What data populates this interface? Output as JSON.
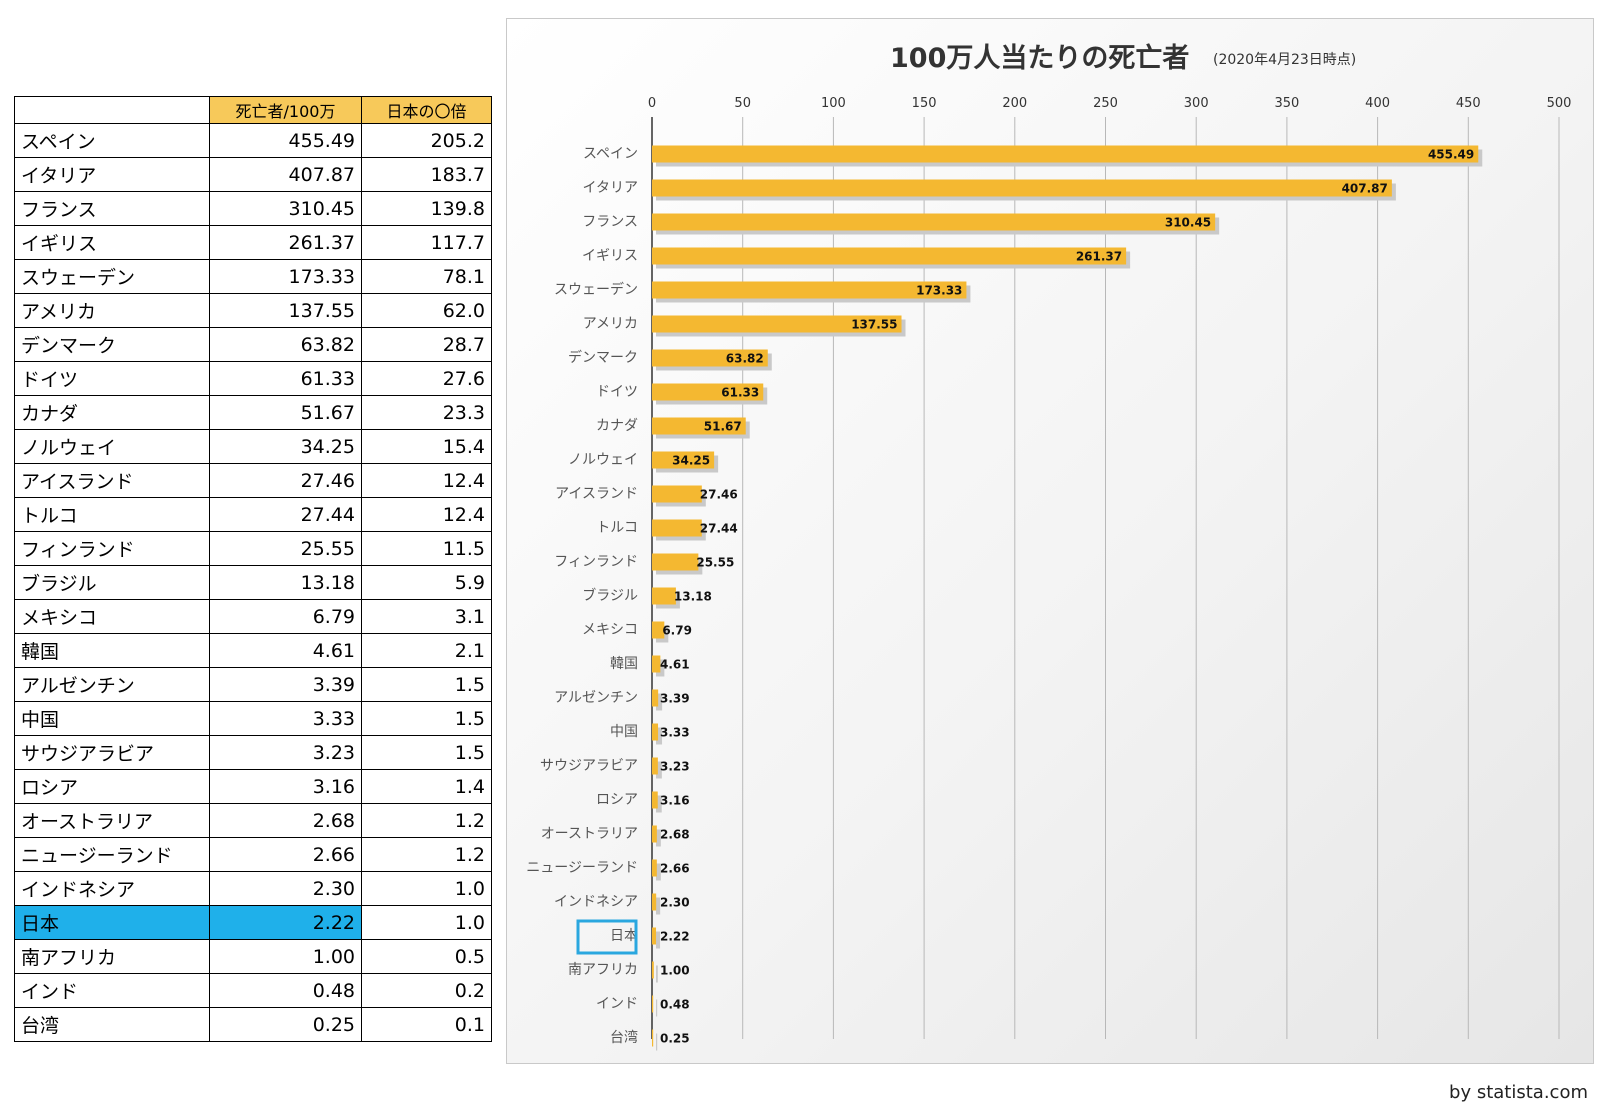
{
  "table": {
    "headers": [
      "",
      "死亡者/100万",
      "日本の〇倍"
    ],
    "highlight_color": "#1fb0ea",
    "highlight_row": "日本",
    "rows": [
      [
        "スペイン",
        "455.49",
        "205.2"
      ],
      [
        "イタリア",
        "407.87",
        "183.7"
      ],
      [
        "フランス",
        "310.45",
        "139.8"
      ],
      [
        "イギリス",
        "261.37",
        "117.7"
      ],
      [
        "スウェーデン",
        "173.33",
        "78.1"
      ],
      [
        "アメリカ",
        "137.55",
        "62.0"
      ],
      [
        "デンマーク",
        "63.82",
        "28.7"
      ],
      [
        "ドイツ",
        "61.33",
        "27.6"
      ],
      [
        "カナダ",
        "51.67",
        "23.3"
      ],
      [
        "ノルウェイ",
        "34.25",
        "15.4"
      ],
      [
        "アイスランド",
        "27.46",
        "12.4"
      ],
      [
        "トルコ",
        "27.44",
        "12.4"
      ],
      [
        "フィンランド",
        "25.55",
        "11.5"
      ],
      [
        "ブラジル",
        "13.18",
        "5.9"
      ],
      [
        "メキシコ",
        "6.79",
        "3.1"
      ],
      [
        "韓国",
        "4.61",
        "2.1"
      ],
      [
        "アルゼンチン",
        "3.39",
        "1.5"
      ],
      [
        "中国",
        "3.33",
        "1.5"
      ],
      [
        "サウジアラビア",
        "3.23",
        "1.5"
      ],
      [
        "ロシア",
        "3.16",
        "1.4"
      ],
      [
        "オーストラリア",
        "2.68",
        "1.2"
      ],
      [
        "ニュージーランド",
        "2.66",
        "1.2"
      ],
      [
        "インドネシア",
        "2.30",
        "1.0"
      ],
      [
        "日本",
        "2.22",
        "1.0"
      ],
      [
        "南アフリカ",
        "1.00",
        "0.5"
      ],
      [
        "インド",
        "0.48",
        "0.2"
      ],
      [
        "台湾",
        "0.25",
        "0.1"
      ]
    ]
  },
  "chart_data": {
    "type": "bar",
    "orientation": "horizontal",
    "title": "100万人当たりの死亡者",
    "subtitle": "(2020年4月23日時点)",
    "categories": [
      "スペイン",
      "イタリア",
      "フランス",
      "イギリス",
      "スウェーデン",
      "アメリカ",
      "デンマーク",
      "ドイツ",
      "カナダ",
      "ノルウェイ",
      "アイスランド",
      "トルコ",
      "フィンランド",
      "ブラジル",
      "メキシコ",
      "韓国",
      "アルゼンチン",
      "中国",
      "サウジアラビア",
      "ロシア",
      "オーストラリア",
      "ニュージーランド",
      "インドネシア",
      "日本",
      "南アフリカ",
      "インド",
      "台湾"
    ],
    "values": [
      455.49,
      407.87,
      310.45,
      261.37,
      173.33,
      137.55,
      63.82,
      61.33,
      51.67,
      34.25,
      27.46,
      27.44,
      25.55,
      13.18,
      6.79,
      4.61,
      3.39,
      3.33,
      3.23,
      3.16,
      2.68,
      2.66,
      2.3,
      2.22,
      1.0,
      0.48,
      0.25
    ],
    "value_labels": [
      "455.49",
      "407.87",
      "310.45",
      "261.37",
      "173.33",
      "137.55",
      "63.82",
      "61.33",
      "51.67",
      "34.25",
      "27.46",
      "27.44",
      "25.55",
      "13.18",
      "6.79",
      "4.61",
      "3.39",
      "3.33",
      "3.23",
      "3.16",
      "2.68",
      "2.66",
      "2.30",
      "2.22",
      "1.00",
      "0.48",
      "0.25"
    ],
    "xlim": [
      0,
      500
    ],
    "xticks": [
      0,
      50,
      100,
      150,
      200,
      250,
      300,
      350,
      400,
      450,
      500
    ],
    "x_axis_position": "top",
    "grid": true,
    "bar_color": "#f4b831",
    "highlight_category": "日本",
    "highlight_color": "#2aa7df"
  },
  "credit": "by statista.com"
}
